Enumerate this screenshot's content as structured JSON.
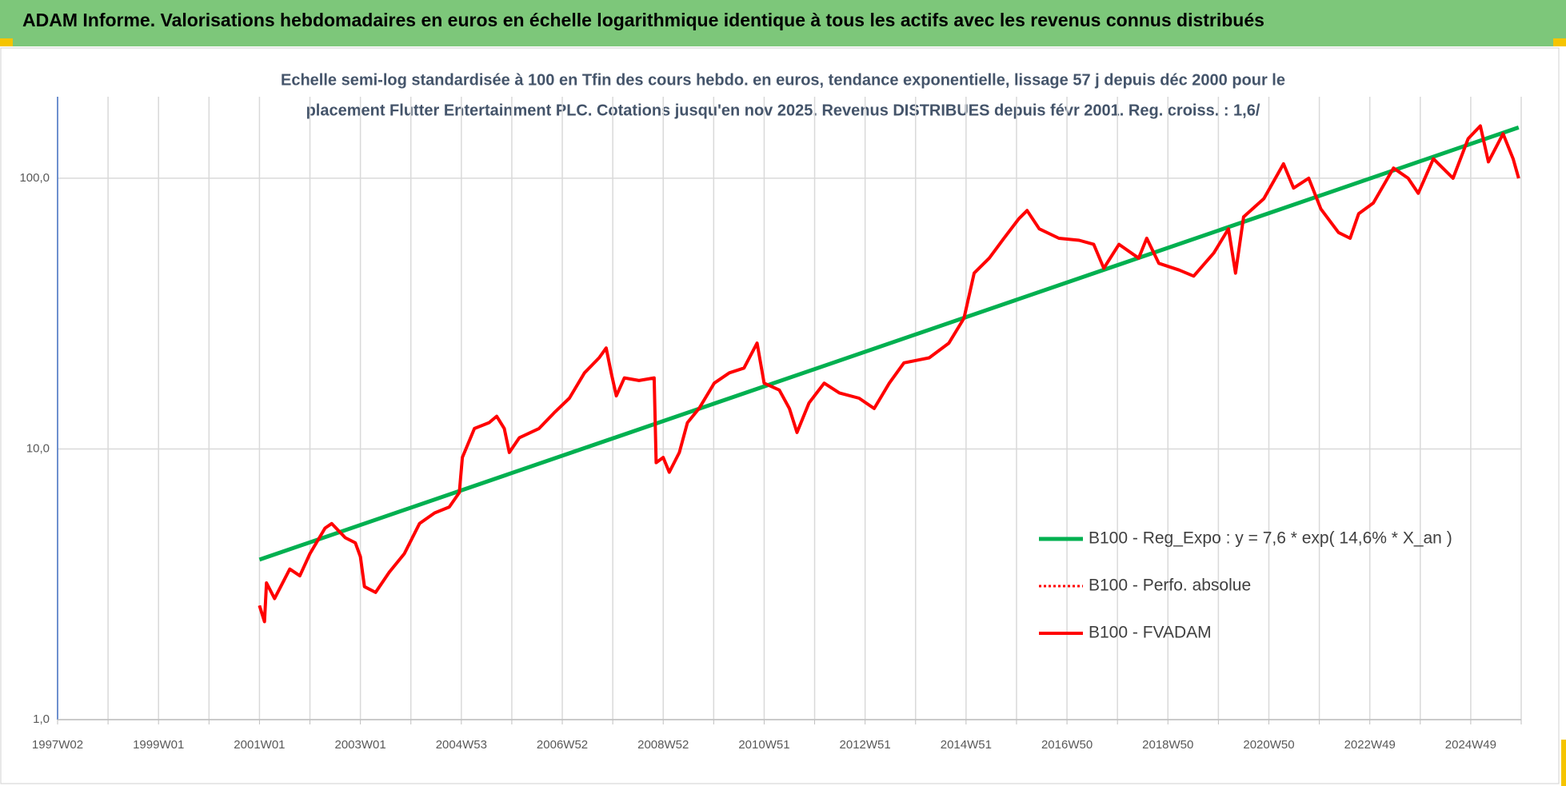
{
  "header": {
    "title": "ADAM Informe. Valorisations hebdomadaires en euros en échelle logarithmique identique à tous les actifs avec les revenus connus distribués"
  },
  "chart_data": {
    "type": "line",
    "subtitle_lines": [
      "Echelle semi-log standardisée à 100 en Tfin des cours hebdo. en euros, tendance exponentielle, lissage 57 j depuis déc 2000 pour le",
      "placement Flutter Entertainment PLC. Cotations jusqu'en nov 2025. Revenus DISTRIBUES depuis févr 2001. Reg. croiss. : 1,6/"
    ],
    "log_scale": true,
    "grid": true,
    "legend": "right",
    "xlim": [
      1997,
      2026
    ],
    "xticks": [
      {
        "value": 1997,
        "label": "1997W02"
      },
      {
        "value": 1998,
        "label": null
      },
      {
        "value": 1999,
        "label": "1999W01"
      },
      {
        "value": 2000,
        "label": null
      },
      {
        "value": 2001,
        "label": "2001W01"
      },
      {
        "value": 2002,
        "label": null
      },
      {
        "value": 2003,
        "label": "2003W01"
      },
      {
        "value": 2004,
        "label": null
      },
      {
        "value": 2005,
        "label": "2004W53"
      },
      {
        "value": 2006,
        "label": null
      },
      {
        "value": 2007,
        "label": "2006W52"
      },
      {
        "value": 2008,
        "label": null
      },
      {
        "value": 2009,
        "label": "2008W52"
      },
      {
        "value": 2010,
        "label": null
      },
      {
        "value": 2011,
        "label": "2010W51"
      },
      {
        "value": 2012,
        "label": null
      },
      {
        "value": 2013,
        "label": "2012W51"
      },
      {
        "value": 2014,
        "label": null
      },
      {
        "value": 2015,
        "label": "2014W51"
      },
      {
        "value": 2016,
        "label": null
      },
      {
        "value": 2017,
        "label": "2016W50"
      },
      {
        "value": 2018,
        "label": null
      },
      {
        "value": 2019,
        "label": "2018W50"
      },
      {
        "value": 2020,
        "label": null
      },
      {
        "value": 2021,
        "label": "2020W50"
      },
      {
        "value": 2022,
        "label": null
      },
      {
        "value": 2023,
        "label": "2022W49"
      },
      {
        "value": 2024,
        "label": null
      },
      {
        "value": 2025,
        "label": "2024W49"
      },
      {
        "value": 2026,
        "label": null
      }
    ],
    "ylim": [
      1,
      200
    ],
    "yticks": [
      {
        "value": 1,
        "label": "1,0"
      },
      {
        "value": 10,
        "label": "10,0"
      },
      {
        "value": 100,
        "label": "100,0"
      }
    ],
    "series": [
      {
        "name": "B100 - Reg_Expo : y = 7,6 * exp( 14,6% * X_an )",
        "color": "#00b050",
        "style": "solid",
        "width": 5,
        "x": [
          2001.0,
          2025.95
        ],
        "values": [
          3.9,
          154
        ]
      },
      {
        "name": "B100 - Perfo. absolue",
        "color": "#ff0000",
        "style": "dotted",
        "width": 3,
        "x": [
          2001.0,
          2001.1,
          2001.14,
          2001.3,
          2001.6,
          2001.8,
          2002.0,
          2002.3,
          2002.43,
          2002.7,
          2002.9,
          2003.0,
          2003.08,
          2003.3,
          2003.57,
          2003.87,
          2004.17,
          2004.47,
          2004.76,
          2004.96,
          2005.02,
          2005.26,
          2005.55,
          2005.7,
          2005.85,
          2005.95,
          2006.15,
          2006.54,
          2006.84,
          2007.14,
          2007.44,
          2007.73,
          2007.87,
          2007.97,
          2008.07,
          2008.23,
          2008.52,
          2008.82,
          2008.86,
          2009.0,
          2009.12,
          2009.32,
          2009.48,
          2009.71,
          2010.01,
          2010.31,
          2010.6,
          2010.86,
          2011.0,
          2011.3,
          2011.5,
          2011.65,
          2011.89,
          2012.19,
          2012.49,
          2012.88,
          2013.18,
          2013.48,
          2013.77,
          2014.27,
          2014.66,
          2014.96,
          2015.16,
          2015.46,
          2015.75,
          2016.05,
          2016.21,
          2016.45,
          2016.84,
          2017.24,
          2017.53,
          2017.73,
          2018.03,
          2018.42,
          2018.58,
          2018.82,
          2019.22,
          2019.51,
          2019.91,
          2020.2,
          2020.34,
          2020.5,
          2020.9,
          2021.29,
          2021.49,
          2021.79,
          2022.03,
          2022.38,
          2022.61,
          2022.78,
          2023.07,
          2023.47,
          2023.76,
          2023.96,
          2024.26,
          2024.65,
          2024.95,
          2025.19,
          2025.35,
          2025.64,
          2025.84,
          2025.95
        ],
        "values": [
          2.64,
          2.3,
          3.2,
          2.8,
          3.6,
          3.4,
          4.1,
          5.1,
          5.3,
          4.7,
          4.5,
          4.0,
          3.1,
          2.95,
          3.5,
          4.1,
          5.3,
          5.8,
          6.1,
          6.9,
          9.3,
          11.9,
          12.5,
          13.2,
          11.9,
          9.7,
          11.0,
          11.9,
          13.6,
          15.4,
          19.1,
          21.7,
          23.6,
          19.1,
          15.7,
          18.3,
          17.9,
          18.3,
          8.9,
          9.3,
          8.2,
          9.7,
          12.5,
          14.1,
          17.5,
          19.1,
          19.9,
          24.6,
          17.5,
          16.5,
          14.1,
          11.5,
          14.8,
          17.5,
          16.1,
          15.4,
          14.1,
          17.5,
          20.8,
          21.7,
          24.6,
          30.4,
          44.6,
          50.7,
          60,
          71,
          76,
          65,
          60,
          59,
          57,
          46.5,
          57,
          50.7,
          60,
          48.5,
          45.8,
          43.5,
          53,
          65,
          44.6,
          72,
          84,
          113,
          92,
          100,
          77,
          63,
          60,
          74,
          81,
          109,
          100,
          88,
          118,
          100,
          140,
          156,
          115,
          146,
          118,
          100
        ]
      },
      {
        "name": "B100 - FVADAM",
        "color": "#ff0000",
        "style": "solid",
        "width": 4,
        "x": [
          2001.0,
          2001.1,
          2001.14,
          2001.3,
          2001.6,
          2001.8,
          2002.0,
          2002.3,
          2002.43,
          2002.7,
          2002.9,
          2003.0,
          2003.08,
          2003.3,
          2003.57,
          2003.87,
          2004.17,
          2004.47,
          2004.76,
          2004.96,
          2005.02,
          2005.26,
          2005.55,
          2005.7,
          2005.85,
          2005.95,
          2006.15,
          2006.54,
          2006.84,
          2007.14,
          2007.44,
          2007.73,
          2007.87,
          2007.97,
          2008.07,
          2008.23,
          2008.52,
          2008.82,
          2008.86,
          2009.0,
          2009.12,
          2009.32,
          2009.48,
          2009.71,
          2010.01,
          2010.31,
          2010.6,
          2010.86,
          2011.0,
          2011.3,
          2011.5,
          2011.65,
          2011.89,
          2012.19,
          2012.49,
          2012.88,
          2013.18,
          2013.48,
          2013.77,
          2014.27,
          2014.66,
          2014.96,
          2015.16,
          2015.46,
          2015.75,
          2016.05,
          2016.21,
          2016.45,
          2016.84,
          2017.24,
          2017.53,
          2017.73,
          2018.03,
          2018.42,
          2018.58,
          2018.82,
          2019.22,
          2019.51,
          2019.91,
          2020.2,
          2020.34,
          2020.5,
          2020.9,
          2021.29,
          2021.49,
          2021.79,
          2022.03,
          2022.38,
          2022.61,
          2022.78,
          2023.07,
          2023.47,
          2023.76,
          2023.96,
          2024.26,
          2024.65,
          2024.95,
          2025.19,
          2025.35,
          2025.64,
          2025.84,
          2025.95
        ],
        "values": [
          2.64,
          2.3,
          3.2,
          2.8,
          3.6,
          3.4,
          4.1,
          5.1,
          5.3,
          4.7,
          4.5,
          4.0,
          3.1,
          2.95,
          3.5,
          4.1,
          5.3,
          5.8,
          6.1,
          6.9,
          9.3,
          11.9,
          12.5,
          13.2,
          11.9,
          9.7,
          11.0,
          11.9,
          13.6,
          15.4,
          19.1,
          21.7,
          23.6,
          19.1,
          15.7,
          18.3,
          17.9,
          18.3,
          8.9,
          9.3,
          8.2,
          9.7,
          12.5,
          14.1,
          17.5,
          19.1,
          19.9,
          24.6,
          17.5,
          16.5,
          14.1,
          11.5,
          14.8,
          17.5,
          16.1,
          15.4,
          14.1,
          17.5,
          20.8,
          21.7,
          24.6,
          30.4,
          44.6,
          50.7,
          60,
          71,
          76,
          65,
          60,
          59,
          57,
          46.5,
          57,
          50.7,
          60,
          48.5,
          45.8,
          43.5,
          53,
          65,
          44.6,
          72,
          84,
          113,
          92,
          100,
          77,
          63,
          60,
          74,
          81,
          109,
          100,
          88,
          118,
          100,
          140,
          156,
          115,
          146,
          118,
          100
        ]
      }
    ]
  }
}
